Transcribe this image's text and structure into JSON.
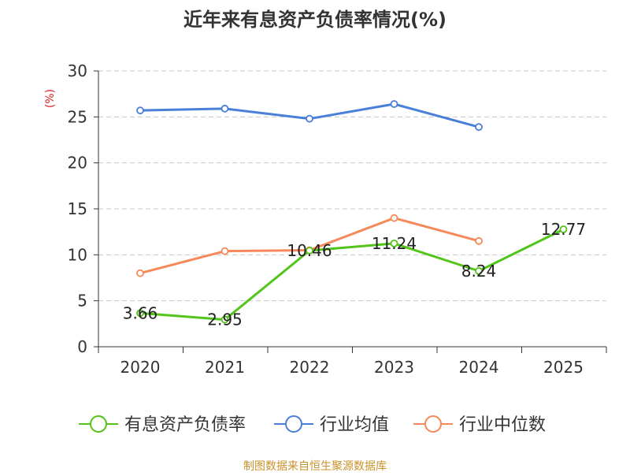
{
  "chart_data": {
    "type": "line",
    "title": "近年来有息资产负债率情况(%)",
    "ylabel": "(%)",
    "xlabel": "",
    "ylim": [
      0,
      30
    ],
    "yticks": [
      0,
      5,
      10,
      15,
      20,
      25,
      30
    ],
    "categories": [
      "2020",
      "2021",
      "2022",
      "2023",
      "2024",
      "2025"
    ],
    "grid": true,
    "legend_position": "bottom",
    "series": [
      {
        "name": "有息资产负债率",
        "color": "#52c41a",
        "values": [
          3.66,
          2.95,
          10.46,
          11.24,
          8.24,
          12.77
        ],
        "labels": [
          "3.66",
          "2.95",
          "10.46",
          "11.24",
          "8.24",
          "12.77"
        ]
      },
      {
        "name": "行业均值",
        "color": "#4a7fd9",
        "values": [
          25.7,
          25.9,
          24.8,
          26.4,
          23.9,
          null
        ]
      },
      {
        "name": "行业中位数",
        "color": "#f5895a",
        "values": [
          8.0,
          10.4,
          10.5,
          14.0,
          11.5,
          null
        ]
      }
    ]
  },
  "source": "制图数据来自恒生聚源数据库",
  "colors": {
    "title": "#333333",
    "ylabel": "#e02020",
    "axis": "#333333",
    "grid": "#c8c8c8",
    "source": "#c8922a"
  }
}
